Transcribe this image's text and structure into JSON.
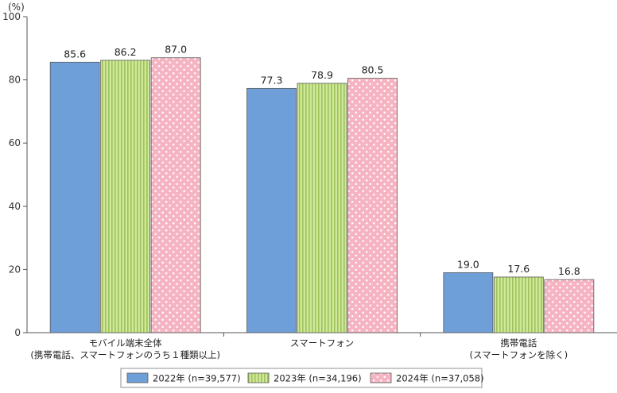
{
  "chart_data": {
    "type": "bar",
    "unit_label": "(%)",
    "ylim": [
      0,
      100
    ],
    "yticks": [
      0,
      20,
      40,
      60,
      80,
      100
    ],
    "grid": false,
    "legend_position": "bottom",
    "categories": [
      [
        "モバイル端末全体",
        "(携帯電話、スマートフォンのうち１種類以上)"
      ],
      [
        "スマートフォン"
      ],
      [
        "携帯電話",
        "(スマートフォンを除く)"
      ]
    ],
    "series": [
      {
        "name": "2022年 (n=39,577)",
        "values": [
          85.6,
          77.3,
          19.0
        ],
        "labels": [
          "85.6",
          "77.3",
          "19.0"
        ],
        "color": "#6f9fd8",
        "pattern": "solid"
      },
      {
        "name": "2023年 (n=34,196)",
        "values": [
          86.2,
          78.9,
          17.6
        ],
        "labels": [
          "86.2",
          "78.9",
          "17.6"
        ],
        "color": "#c6e08a",
        "pattern": "vertical-stripes"
      },
      {
        "name": "2024年 (n=37,058)",
        "values": [
          87.0,
          80.5,
          16.8
        ],
        "labels": [
          "87.0",
          "80.5",
          "16.8"
        ],
        "color": "#f7b9c6",
        "pattern": "dots"
      }
    ]
  }
}
